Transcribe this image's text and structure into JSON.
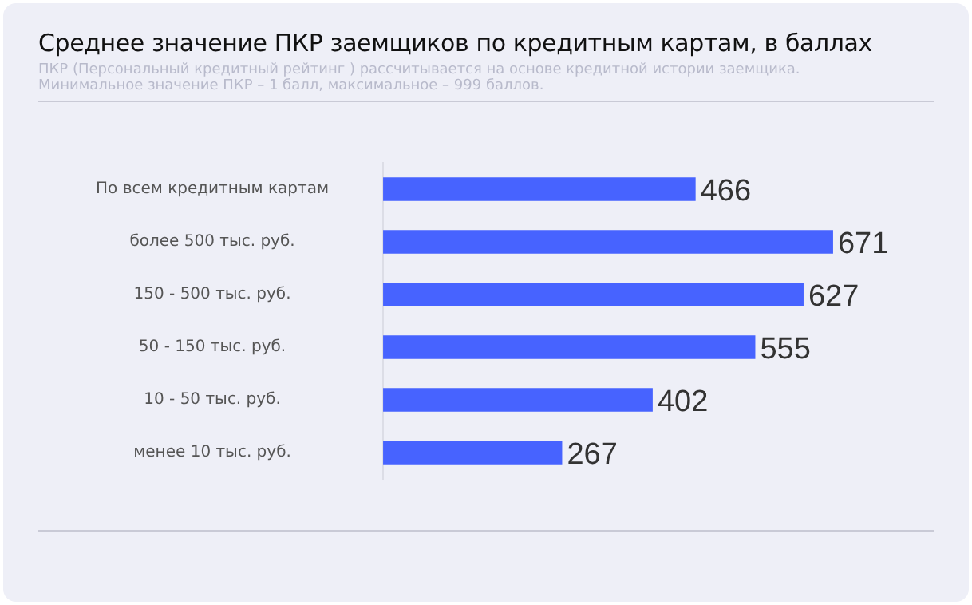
{
  "chart_data": {
    "type": "bar",
    "orientation": "horizontal",
    "title": "Среднее значение ПКР заемщиков по кредитным картам, в баллах",
    "subtitle": "ПКР (Персональный кредитный рейтинг ) рассчитывается на основе кредитной истории заемщика.\nМинимальное значение  ПКР – 1 балл, максимальное – 999 баллов.",
    "categories": [
      "По всем кредитным картам",
      "более 500 тыс. руб.",
      "150 - 500 тыс. руб.",
      "50 - 150 тыс. руб.",
      "10 - 50 тыс. руб.",
      "менее 10 тыс. руб."
    ],
    "values": [
      466,
      671,
      627,
      555,
      402,
      267
    ],
    "color": "#4763ff",
    "data_labels": true
  }
}
